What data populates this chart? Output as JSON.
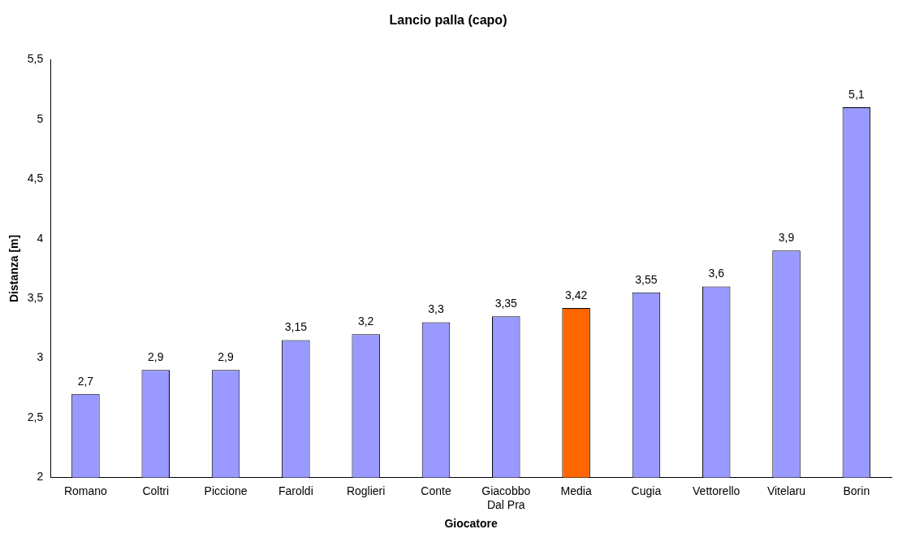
{
  "chart_data": {
    "type": "bar",
    "title": "Lancio palla (capo)",
    "xlabel": "Giocatore",
    "ylabel": "Distanza [m]",
    "categories": [
      "Romano",
      "Coltri",
      "Piccione",
      "Faroldi",
      "Roglieri",
      "Conte",
      "Giacobbo Dal Pra",
      "Media",
      "Cugia",
      "Vettorello",
      "Vitelaru",
      "Borin"
    ],
    "values": [
      2.7,
      2.9,
      2.9,
      3.15,
      3.2,
      3.3,
      3.35,
      3.42,
      3.55,
      3.6,
      3.9,
      5.1
    ],
    "colors": [
      "#9999ff",
      "#9999ff",
      "#9999ff",
      "#9999ff",
      "#9999ff",
      "#9999ff",
      "#9999ff",
      "#ff6600",
      "#9999ff",
      "#9999ff",
      "#9999ff",
      "#9999ff"
    ],
    "value_labels": [
      "2,7",
      "2,9",
      "2,9",
      "3,15",
      "3,2",
      "3,3",
      "3,35",
      "3,42",
      "3,55",
      "3,6",
      "3,9",
      "5,1"
    ],
    "ylim": [
      2,
      5.5
    ],
    "yticks": [
      2,
      {
        "value": 2.5,
        "label": "2,5"
      },
      3,
      {
        "value": 3.5,
        "label": "3,5"
      },
      4,
      {
        "value": 4.5,
        "label": "4,5"
      },
      5,
      {
        "value": 5.5,
        "label": "5,5"
      }
    ],
    "grid": false,
    "legend": false
  }
}
